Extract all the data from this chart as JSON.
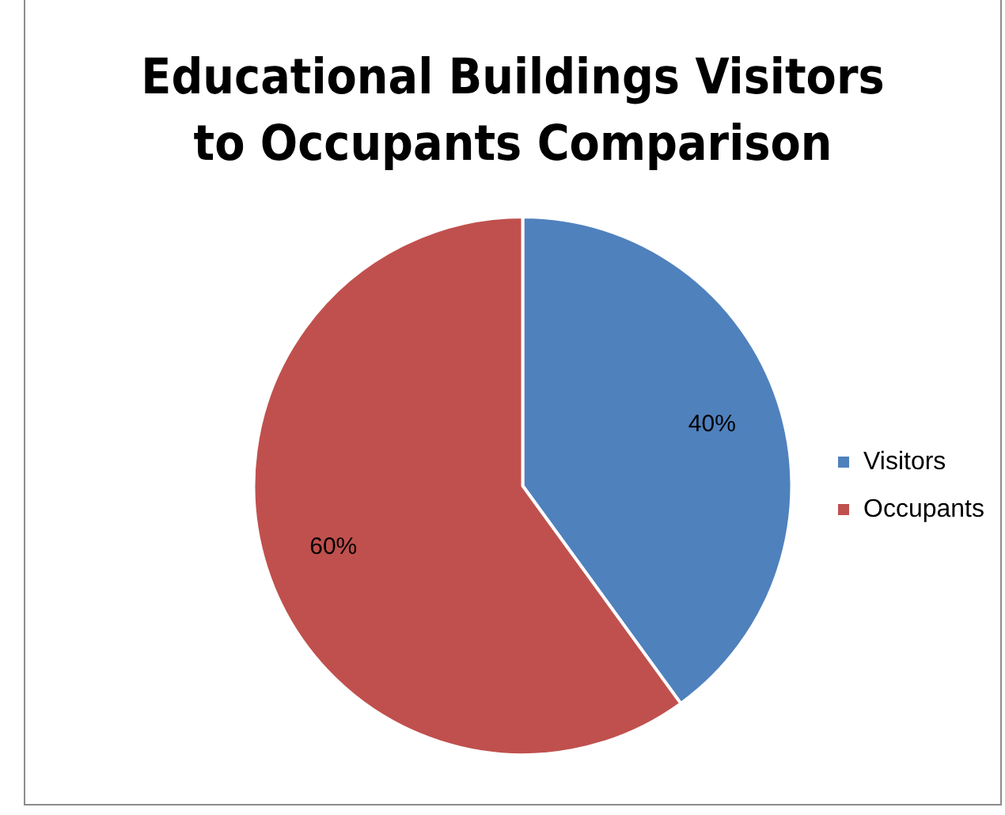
{
  "chart_data": {
    "type": "pie",
    "title": "Educational Buildings Visitors to Occupants Comparison",
    "categories": [
      "Visitors",
      "Occupants"
    ],
    "values": [
      40,
      60
    ],
    "value_labels": [
      "40%",
      "60%"
    ],
    "colors": [
      "#4f81bd",
      "#c0504d"
    ],
    "legend": "right"
  }
}
